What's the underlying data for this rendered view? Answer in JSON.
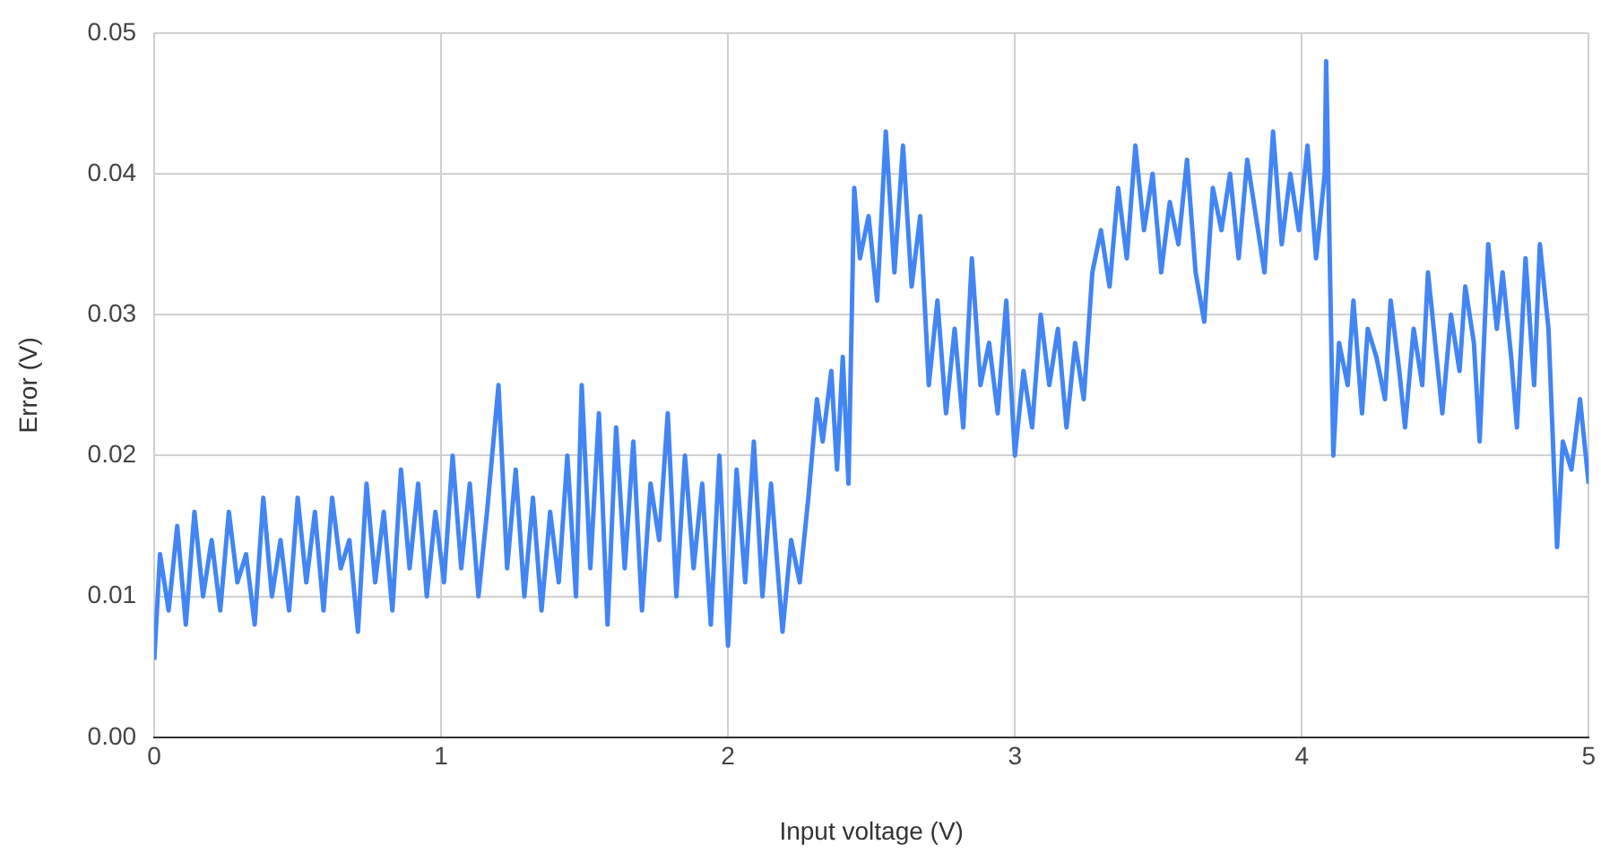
{
  "chart_data": {
    "type": "line",
    "xlabel": "Input voltage (V)",
    "ylabel": "Error (V)",
    "x": [
      0,
      0.02,
      0.05,
      0.08,
      0.11,
      0.14,
      0.17,
      0.2,
      0.23,
      0.26,
      0.29,
      0.32,
      0.35,
      0.38,
      0.41,
      0.44,
      0.47,
      0.5,
      0.53,
      0.56,
      0.59,
      0.62,
      0.65,
      0.68,
      0.71,
      0.74,
      0.77,
      0.8,
      0.83,
      0.86,
      0.89,
      0.92,
      0.95,
      0.98,
      1.01,
      1.04,
      1.07,
      1.1,
      1.13,
      1.16,
      1.2,
      1.23,
      1.26,
      1.29,
      1.32,
      1.35,
      1.38,
      1.41,
      1.44,
      1.47,
      1.49,
      1.52,
      1.55,
      1.58,
      1.61,
      1.64,
      1.67,
      1.7,
      1.73,
      1.76,
      1.79,
      1.82,
      1.85,
      1.88,
      1.91,
      1.94,
      1.97,
      2.0,
      2.03,
      2.06,
      2.09,
      2.12,
      2.15,
      2.19,
      2.22,
      2.25,
      2.28,
      2.31,
      2.33,
      2.36,
      2.38,
      2.4,
      2.42,
      2.44,
      2.46,
      2.49,
      2.52,
      2.55,
      2.58,
      2.61,
      2.64,
      2.67,
      2.7,
      2.73,
      2.76,
      2.79,
      2.82,
      2.85,
      2.88,
      2.91,
      2.94,
      2.97,
      3.0,
      3.03,
      3.06,
      3.09,
      3.12,
      3.15,
      3.18,
      3.21,
      3.24,
      3.27,
      3.3,
      3.33,
      3.36,
      3.39,
      3.42,
      3.45,
      3.48,
      3.51,
      3.54,
      3.57,
      3.6,
      3.63,
      3.66,
      3.69,
      3.72,
      3.75,
      3.78,
      3.81,
      3.84,
      3.87,
      3.9,
      3.93,
      3.96,
      3.99,
      4.02,
      4.05,
      4.08,
      4.085,
      4.095,
      4.11,
      4.13,
      4.16,
      4.18,
      4.21,
      4.23,
      4.26,
      4.29,
      4.31,
      4.34,
      4.36,
      4.39,
      4.42,
      4.44,
      4.47,
      4.49,
      4.52,
      4.55,
      4.57,
      4.6,
      4.62,
      4.65,
      4.68,
      4.7,
      4.73,
      4.75,
      4.78,
      4.81,
      4.83,
      4.86,
      4.89,
      4.91,
      4.94,
      4.97,
      5.0
    ],
    "values": [
      0.0055,
      0.013,
      0.009,
      0.015,
      0.008,
      0.016,
      0.01,
      0.014,
      0.009,
      0.016,
      0.011,
      0.013,
      0.008,
      0.017,
      0.01,
      0.014,
      0.009,
      0.017,
      0.011,
      0.016,
      0.009,
      0.017,
      0.012,
      0.014,
      0.0075,
      0.018,
      0.011,
      0.016,
      0.009,
      0.019,
      0.012,
      0.018,
      0.01,
      0.016,
      0.011,
      0.02,
      0.012,
      0.018,
      0.01,
      0.016,
      0.025,
      0.012,
      0.019,
      0.01,
      0.017,
      0.009,
      0.016,
      0.011,
      0.02,
      0.01,
      0.025,
      0.012,
      0.023,
      0.008,
      0.022,
      0.012,
      0.021,
      0.009,
      0.018,
      0.014,
      0.023,
      0.01,
      0.02,
      0.012,
      0.018,
      0.008,
      0.02,
      0.0065,
      0.019,
      0.011,
      0.021,
      0.01,
      0.018,
      0.0075,
      0.014,
      0.011,
      0.017,
      0.024,
      0.021,
      0.026,
      0.019,
      0.027,
      0.018,
      0.039,
      0.034,
      0.037,
      0.031,
      0.043,
      0.033,
      0.042,
      0.032,
      0.037,
      0.025,
      0.031,
      0.023,
      0.029,
      0.022,
      0.034,
      0.025,
      0.028,
      0.023,
      0.031,
      0.02,
      0.026,
      0.022,
      0.03,
      0.025,
      0.029,
      0.022,
      0.028,
      0.024,
      0.033,
      0.036,
      0.032,
      0.039,
      0.034,
      0.042,
      0.036,
      0.04,
      0.033,
      0.038,
      0.035,
      0.041,
      0.033,
      0.0295,
      0.039,
      0.036,
      0.04,
      0.034,
      0.041,
      0.037,
      0.033,
      0.043,
      0.035,
      0.04,
      0.036,
      0.042,
      0.034,
      0.04,
      0.048,
      0.037,
      0.02,
      0.028,
      0.025,
      0.031,
      0.023,
      0.029,
      0.027,
      0.024,
      0.031,
      0.026,
      0.022,
      0.029,
      0.025,
      0.033,
      0.027,
      0.023,
      0.03,
      0.026,
      0.032,
      0.028,
      0.021,
      0.035,
      0.029,
      0.033,
      0.027,
      0.022,
      0.034,
      0.025,
      0.035,
      0.029,
      0.0135,
      0.021,
      0.019,
      0.024,
      0.018
    ],
    "color": "#4285f4",
    "xlim": [
      0,
      5
    ],
    "xticks": [
      0,
      1,
      2,
      3,
      4,
      5
    ],
    "ylim": [
      0,
      0.05
    ],
    "yticks": [
      {
        "value": 0,
        "label": "0.00"
      },
      {
        "value": 0.01,
        "label": "0.01"
      },
      {
        "value": 0.02,
        "label": "0.02"
      },
      {
        "value": 0.03,
        "label": "0.03"
      },
      {
        "value": 0.04,
        "label": "0.04"
      },
      {
        "value": 0.05,
        "label": "0.05"
      }
    ],
    "grid": true,
    "legend": false,
    "marker": "none",
    "line_style": "solid"
  }
}
